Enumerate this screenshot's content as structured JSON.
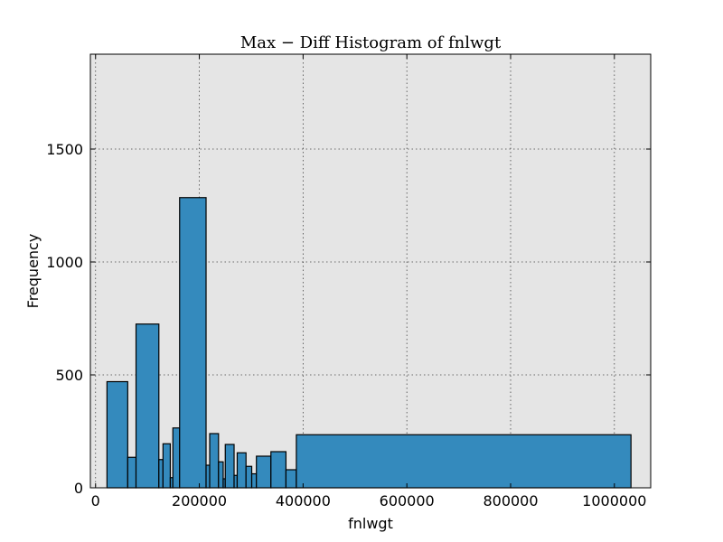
{
  "chart_data": {
    "type": "bar",
    "title": "Max − Diff Histogram of fnlwgt",
    "xlabel": "fnlwgt",
    "ylabel": "Frequency",
    "xlim": [
      -10000,
      1070000
    ],
    "ylim": [
      0,
      1920
    ],
    "xticks": [
      0,
      200000,
      400000,
      600000,
      800000,
      1000000
    ],
    "yticks": [
      0,
      500,
      1000,
      1500
    ],
    "grid": true,
    "colors": {
      "bar": "#348ABD",
      "plot_bg": "#E5E5E5",
      "edge": "#000000"
    },
    "bins": [
      {
        "x0": 22000,
        "x1": 62000,
        "count": 470
      },
      {
        "x0": 62000,
        "x1": 78000,
        "count": 135
      },
      {
        "x0": 78000,
        "x1": 122000,
        "count": 725
      },
      {
        "x0": 122000,
        "x1": 130000,
        "count": 125
      },
      {
        "x0": 130000,
        "x1": 144000,
        "count": 195
      },
      {
        "x0": 144000,
        "x1": 149000,
        "count": 45
      },
      {
        "x0": 149000,
        "x1": 162000,
        "count": 265
      },
      {
        "x0": 162000,
        "x1": 213000,
        "count": 1285
      },
      {
        "x0": 213000,
        "x1": 220000,
        "count": 100
      },
      {
        "x0": 220000,
        "x1": 237000,
        "count": 240
      },
      {
        "x0": 237000,
        "x1": 246000,
        "count": 115
      },
      {
        "x0": 246000,
        "x1": 250000,
        "count": 40
      },
      {
        "x0": 250000,
        "x1": 267000,
        "count": 192
      },
      {
        "x0": 267000,
        "x1": 273000,
        "count": 55
      },
      {
        "x0": 273000,
        "x1": 290000,
        "count": 155
      },
      {
        "x0": 290000,
        "x1": 301000,
        "count": 95
      },
      {
        "x0": 301000,
        "x1": 310000,
        "count": 62
      },
      {
        "x0": 310000,
        "x1": 338000,
        "count": 140
      },
      {
        "x0": 338000,
        "x1": 367000,
        "count": 160
      },
      {
        "x0": 367000,
        "x1": 387000,
        "count": 80
      },
      {
        "x0": 387000,
        "x1": 1032000,
        "count": 235
      }
    ]
  }
}
